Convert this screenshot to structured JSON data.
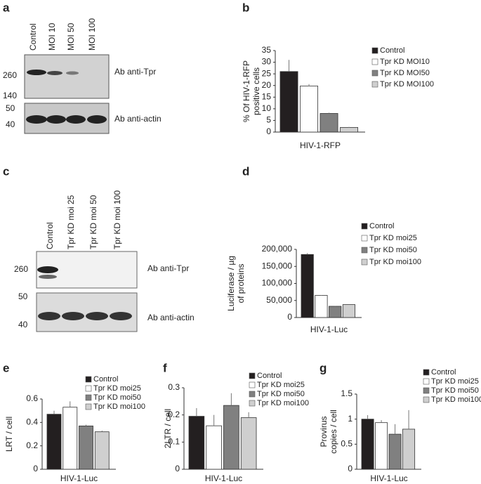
{
  "blots": [
    {
      "panel": "a",
      "lanes": [
        "Control",
        "MOI 10",
        "MOI 50",
        "MOI 100"
      ],
      "markers": [
        "260",
        "140",
        "50",
        "40"
      ],
      "antibodies": [
        "Ab anti-Tpr",
        "Ab anti-actin"
      ]
    },
    {
      "panel": "c",
      "lanes": [
        "Control",
        "Tpr KD moi 25",
        "Tpr KD moi 50",
        "Tpr KD moi 100"
      ],
      "markers": [
        "260",
        "50",
        "40"
      ],
      "antibodies": [
        "Ab anti-Tpr",
        "Ab anti-actin"
      ]
    }
  ],
  "chart_data": [
    {
      "type": "bar",
      "panel": "b",
      "y_label": [
        "% Of HIV-1-RFP",
        "positive cells"
      ],
      "categories": [
        "HIV-1-RFP"
      ],
      "ylim": [
        0,
        35
      ],
      "yticks": [
        0,
        5,
        10,
        15,
        20,
        25,
        30,
        35
      ],
      "series": [
        {
          "name": "Control",
          "color": "#231f20",
          "values": [
            26
          ],
          "errors": [
            5
          ]
        },
        {
          "name": "Tpr KD MOI10",
          "color": "#ffffff",
          "values": [
            19.8
          ],
          "errors": [
            0.8
          ]
        },
        {
          "name": "Tpr KD MOI50",
          "color": "#808080",
          "values": [
            8
          ],
          "errors": [
            0.3
          ]
        },
        {
          "name": "Tpr KD MOI100",
          "color": "#cfcfcf",
          "values": [
            2
          ],
          "errors": [
            0.2
          ]
        }
      ]
    },
    {
      "type": "bar",
      "panel": "d",
      "y_label": [
        "Luciferase / µg",
        "of proteins"
      ],
      "categories": [
        "HIV-1-Luc"
      ],
      "ylim": [
        0,
        200000
      ],
      "yticks": [
        0,
        {
          "value": 50000,
          "label": "50,000"
        },
        {
          "value": 100000,
          "label": "100,000"
        },
        {
          "value": 150000,
          "label": "150,000"
        },
        {
          "value": 200000,
          "label": "200,000"
        }
      ],
      "series": [
        {
          "name": "Control",
          "color": "#231f20",
          "values": [
            185000
          ],
          "errors": [
            4000
          ]
        },
        {
          "name": "Tpr KD moi25",
          "color": "#ffffff",
          "values": [
            65000
          ],
          "errors": [
            1000
          ]
        },
        {
          "name": "Tpr KD moi50",
          "color": "#808080",
          "values": [
            33000
          ],
          "errors": [
            1000
          ]
        },
        {
          "name": "Tpr KD moi100",
          "color": "#cfcfcf",
          "values": [
            38000
          ],
          "errors": [
            1000
          ]
        }
      ]
    },
    {
      "type": "bar",
      "panel": "e",
      "y_label": [
        "LRT / cell"
      ],
      "categories": [
        "HIV-1-Luc"
      ],
      "ylim": [
        0,
        0.6
      ],
      "yticks": [
        0,
        0.2,
        0.4,
        0.6
      ],
      "series": [
        {
          "name": "Control",
          "color": "#231f20",
          "values": [
            0.47
          ],
          "errors": [
            0.03
          ]
        },
        {
          "name": "Tpr KD moi25",
          "color": "#ffffff",
          "values": [
            0.53
          ],
          "errors": [
            0.05
          ]
        },
        {
          "name": "Tpr KD moi50",
          "color": "#808080",
          "values": [
            0.37
          ],
          "errors": [
            0.01
          ]
        },
        {
          "name": "Tpr KD moi100",
          "color": "#cfcfcf",
          "values": [
            0.32
          ],
          "errors": [
            0.01
          ]
        }
      ]
    },
    {
      "type": "bar",
      "panel": "f",
      "y_label": [
        "2LTR / cell"
      ],
      "categories": [
        "HIV-1-Luc"
      ],
      "ylim": [
        0,
        0.3
      ],
      "yticks": [
        0,
        0.1,
        0.2,
        0.3
      ],
      "series": [
        {
          "name": "Control",
          "color": "#231f20",
          "values": [
            0.195
          ],
          "errors": [
            0.03
          ]
        },
        {
          "name": "Tpr KD moi25",
          "color": "#ffffff",
          "values": [
            0.16
          ],
          "errors": [
            0.04
          ]
        },
        {
          "name": "Tpr KD moi50",
          "color": "#808080",
          "values": [
            0.235
          ],
          "errors": [
            0.045
          ]
        },
        {
          "name": "Tpr KD moi100",
          "color": "#cfcfcf",
          "values": [
            0.19
          ],
          "errors": [
            0.02
          ]
        }
      ]
    },
    {
      "type": "bar",
      "panel": "g",
      "y_label": [
        "Provirus",
        "copies / cell"
      ],
      "categories": [
        "HIV-1-Luc"
      ],
      "ylim": [
        0,
        1.5
      ],
      "yticks": [
        0,
        0.5,
        1,
        1.5
      ],
      "series": [
        {
          "name": "Control",
          "color": "#231f20",
          "values": [
            1
          ],
          "errors": [
            0.08
          ]
        },
        {
          "name": "Tpr KD moi25",
          "color": "#ffffff",
          "values": [
            0.93
          ],
          "errors": [
            0.05
          ]
        },
        {
          "name": "Tpr KD moi50",
          "color": "#808080",
          "values": [
            0.7
          ],
          "errors": [
            0.2
          ]
        },
        {
          "name": "Tpr KD moi100",
          "color": "#cfcfcf",
          "values": [
            0.8
          ],
          "errors": [
            0.38
          ]
        }
      ]
    }
  ]
}
